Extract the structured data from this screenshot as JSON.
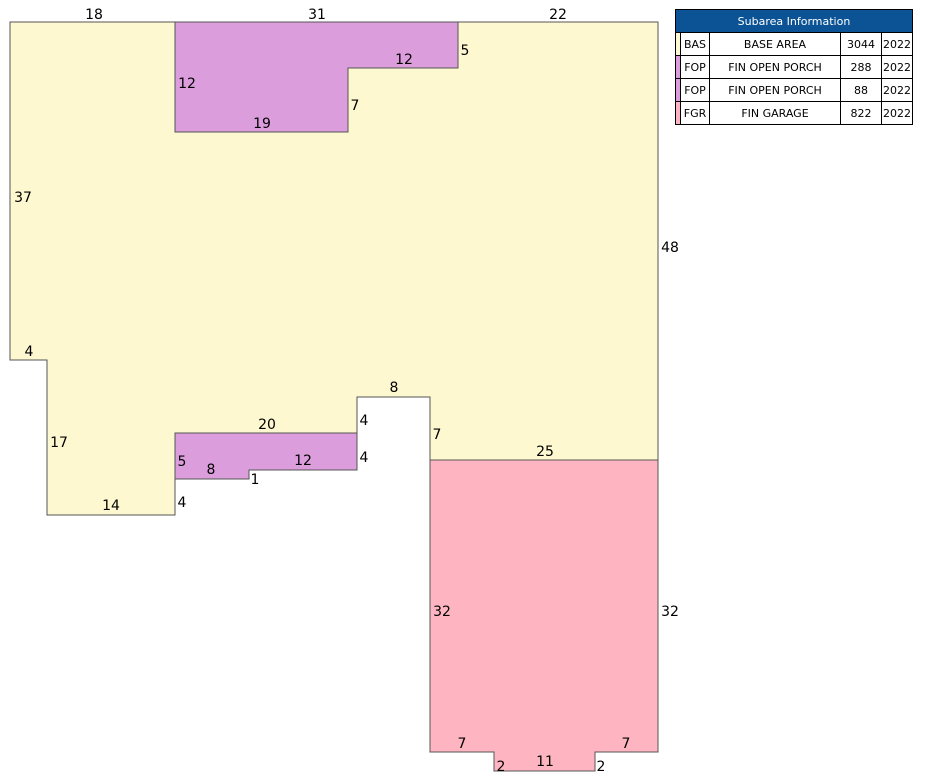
{
  "colors": {
    "base_area": "#fdf8cf",
    "open_porch": "#db9ddc",
    "garage": "#feb5c1",
    "table_header": "#0b5394",
    "outline": "#555555"
  },
  "sketch": {
    "areas": [
      {
        "code": "BAS",
        "label": "BASE AREA"
      },
      {
        "code": "FOP",
        "label": "FIN OPEN PORCH"
      },
      {
        "code": "FOP",
        "label": "FIN OPEN PORCH"
      },
      {
        "code": "FGR",
        "label": "FIN GARAGE"
      }
    ],
    "dimensions": [
      "18",
      "31",
      "22",
      "12",
      "5",
      "12",
      "7",
      "19",
      "37",
      "48",
      "4",
      "8",
      "4",
      "20",
      "4",
      "7",
      "25",
      "5",
      "8",
      "12",
      "1",
      "17",
      "4",
      "14",
      "32",
      "32",
      "7",
      "7",
      "2",
      "11",
      "2"
    ]
  },
  "table": {
    "title": "Subarea Information",
    "rows": [
      {
        "color": "#fdf8cf",
        "code": "BAS",
        "description": "BASE AREA",
        "area": "3044",
        "year": "2022"
      },
      {
        "color": "#db9ddc",
        "code": "FOP",
        "description": "FIN OPEN PORCH",
        "area": "288",
        "year": "2022"
      },
      {
        "color": "#db9ddc",
        "code": "FOP",
        "description": "FIN OPEN PORCH",
        "area": "88",
        "year": "2022"
      },
      {
        "color": "#feb5c1",
        "code": "FGR",
        "description": "FIN GARAGE",
        "area": "822",
        "year": "2022"
      }
    ]
  }
}
